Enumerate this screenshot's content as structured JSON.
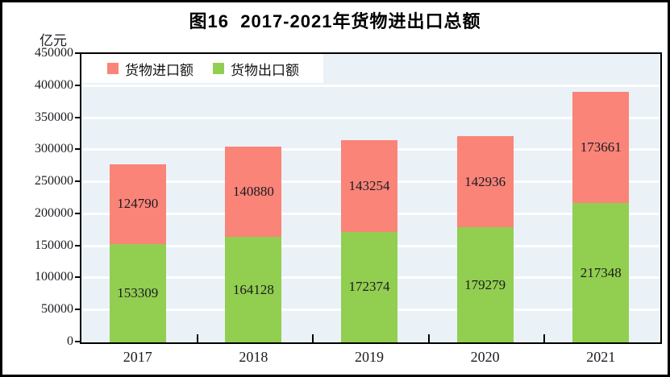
{
  "figure": {
    "title": "图16  2017-2021年货物进出口总额",
    "y_unit_label": "亿元"
  },
  "chart_data": {
    "type": "bar",
    "stacked": true,
    "title": "图16  2017-2021年货物进出口总额",
    "y_axis_unit": "亿元",
    "categories": [
      "2017",
      "2018",
      "2019",
      "2020",
      "2021"
    ],
    "series": [
      {
        "key": "exports",
        "name": "货物出口额",
        "color": "#92CE50",
        "values": [
          153309,
          164128,
          172374,
          179279,
          217348
        ]
      },
      {
        "key": "imports",
        "name": "货物进口额",
        "color": "#FA8478",
        "values": [
          124790,
          140880,
          143254,
          142936,
          173661
        ]
      }
    ],
    "legend_order": [
      "货物进口额",
      "货物出口额"
    ],
    "legend_position": "top-left-inside",
    "ylim": [
      0,
      450000
    ],
    "ytick_step": 50000,
    "yticks": [
      0,
      50000,
      100000,
      150000,
      200000,
      250000,
      300000,
      350000,
      400000,
      450000
    ],
    "grid": true,
    "plot_bg_color": "#EAF2F7",
    "gridline_color": "#FFFFFF",
    "bar_value_labels_visible": true
  }
}
